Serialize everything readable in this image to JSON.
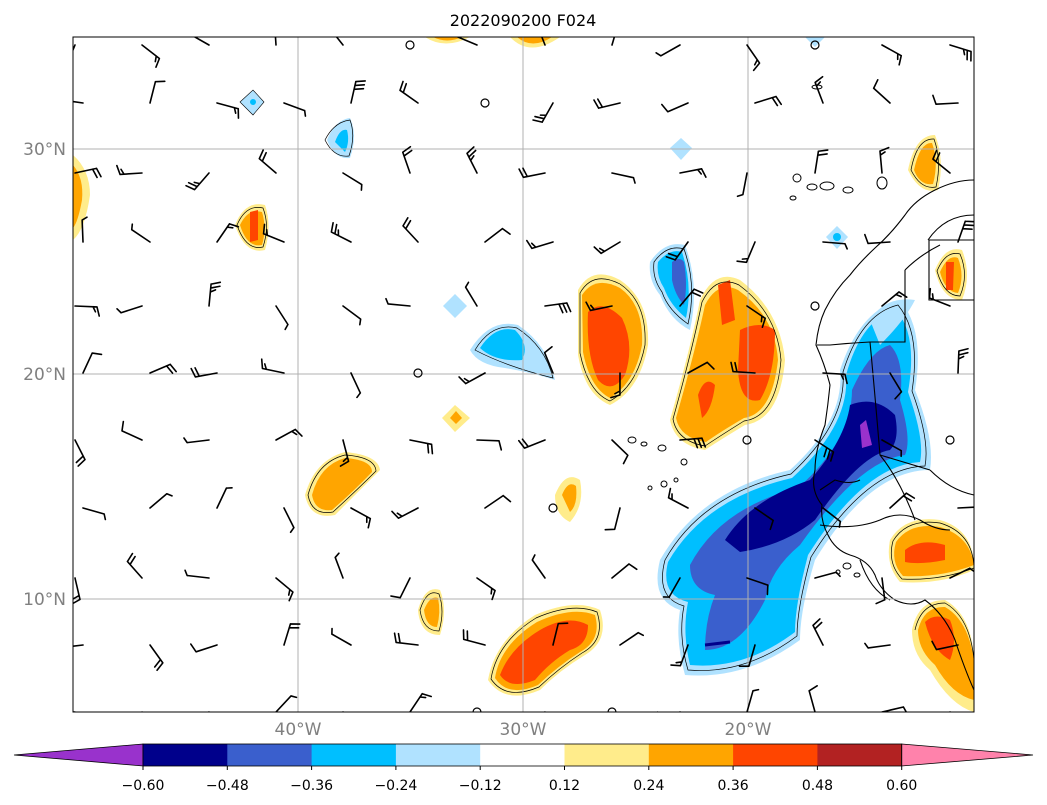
{
  "title": "2022090200 F024",
  "axes": {
    "lat_ticks": [
      "30°N",
      "20°N",
      "10°N"
    ],
    "lon_ticks": [
      "40°W",
      "30°W",
      "20°W"
    ],
    "tick_color": "#808080",
    "grid": true
  },
  "colorbar": {
    "labels": [
      "−0.60",
      "−0.48",
      "−0.36",
      "−0.24",
      "−0.12",
      "0.12",
      "0.24",
      "0.36",
      "0.48",
      "0.60"
    ],
    "colors": [
      "#9932cc",
      "#00008b",
      "#3a5fcd",
      "#00bfff",
      "#b0e2ff",
      "#ffffff",
      "#ffec8b",
      "#ffa500",
      "#ff4500",
      "#b22222",
      "#ff82ab"
    ]
  },
  "map": {
    "land_outline_color": "#000000",
    "wind_barb_color": "#000000"
  }
}
